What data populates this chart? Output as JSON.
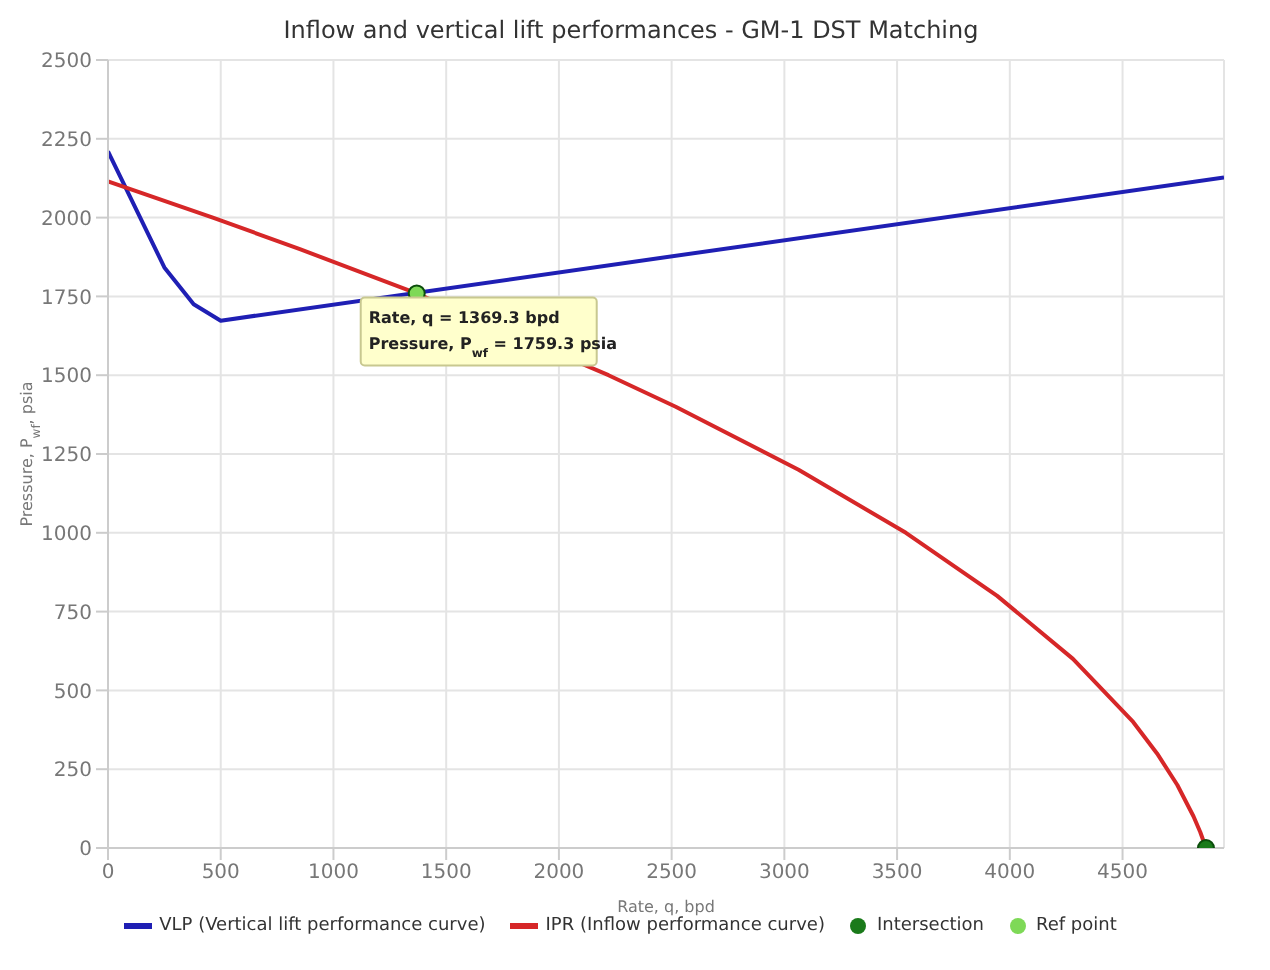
{
  "chart_data": {
    "type": "line",
    "title": "Inflow and vertical lift performances - GM-1 DST Matching",
    "xlabel": "Rate, q, bpd",
    "ylabel": "Pressure, P$_{wf}$, psia",
    "xlim": [
      0,
      4950
    ],
    "xticks": [
      0,
      500,
      1000,
      1500,
      2000,
      2500,
      3000,
      3500,
      4000,
      4500
    ],
    "ylim": [
      0,
      2500
    ],
    "yticks": [
      0,
      250,
      500,
      750,
      1000,
      1250,
      1500,
      1750,
      2000,
      2250,
      2500
    ],
    "grid": true,
    "legend": "bottom",
    "annotations": [
      {
        "text": "Rate, q = 1369.3 bpd\nPressure, P$_{wf}$ = 1759.3 psia",
        "x": 1369.3,
        "y": 1759.3
      }
    ],
    "series": [
      {
        "name": "VLP (Vertical lift performance curve)",
        "marker": "none",
        "color": "#1f1fb4",
        "x": [
          0,
          250,
          380,
          500,
          4950
        ],
        "values": [
          2210,
          1842,
          1725,
          1673,
          2127
        ]
      },
      {
        "name": "IPR (Inflow performance curve)",
        "marker": "none",
        "color": "#d62728",
        "x": [
          0,
          465,
          851,
          1369.3,
          2220,
          2518,
          3063,
          3539,
          3944,
          4280,
          4547,
          4653,
          4743,
          4815,
          4845,
          4870
        ],
        "values": [
          2115,
          2000,
          1900,
          1759.3,
          1500,
          1400,
          1200,
          1000,
          800,
          600,
          400,
          300,
          200,
          100,
          50,
          0
        ]
      },
      {
        "name": "Intersection",
        "type": "scatter",
        "marker": "circle",
        "color": "#1a7a1a",
        "x": [
          4870
        ],
        "values": [
          0
        ]
      },
      {
        "name": "Ref point",
        "type": "scatter",
        "marker": "circle",
        "color": "#7ed957",
        "x": [
          1369.3
        ],
        "values": [
          1759.3
        ]
      }
    ]
  }
}
